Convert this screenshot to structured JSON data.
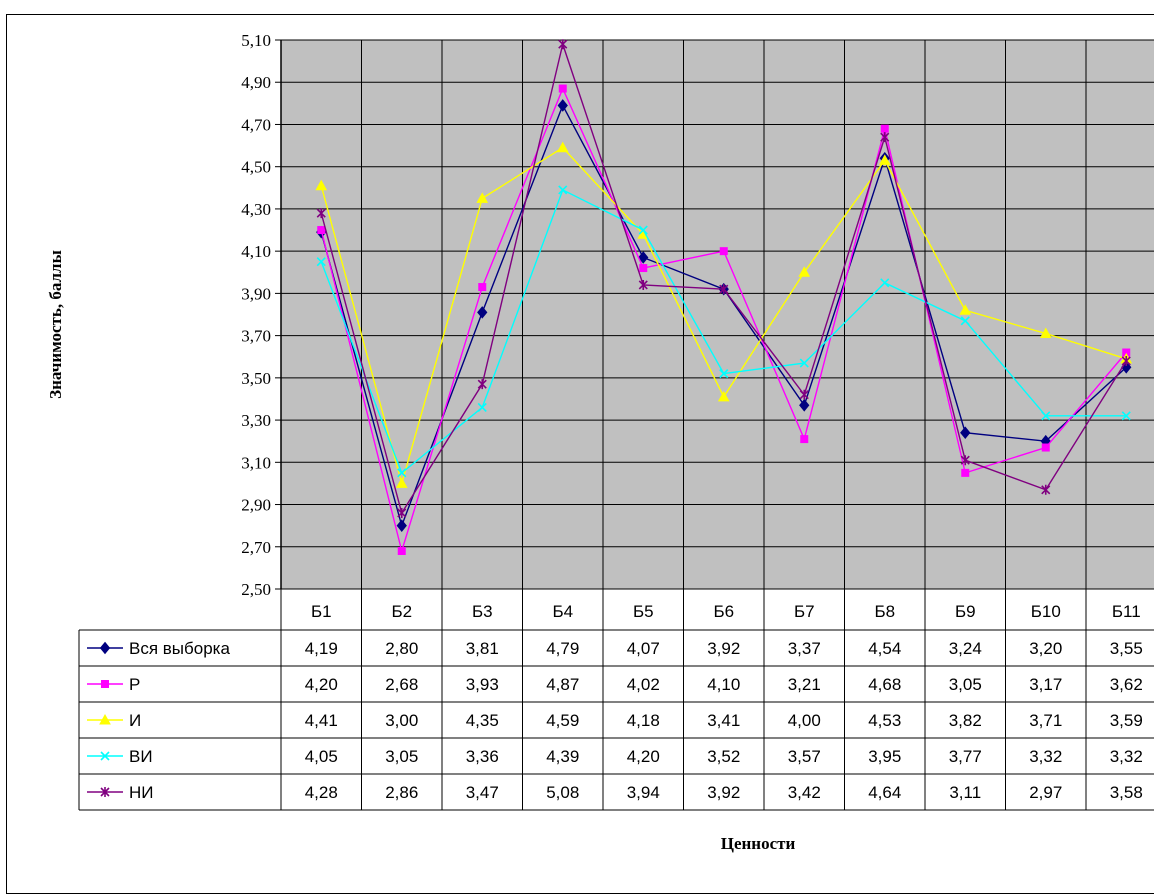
{
  "chart_data": {
    "type": "line",
    "title": "",
    "xlabel": "Ценности",
    "ylabel": "Значимость, баллы",
    "ylim": [
      2.5,
      5.1
    ],
    "yticks": [
      "2,50",
      "2,70",
      "2,90",
      "3,10",
      "3,30",
      "3,50",
      "3,70",
      "3,90",
      "4,10",
      "4,30",
      "4,50",
      "4,70",
      "4,90",
      "5,10"
    ],
    "categories": [
      "Б1",
      "Б2",
      "Б3",
      "Б4",
      "Б5",
      "Б6",
      "Б7",
      "Б8",
      "Б9",
      "Б10",
      "Б11"
    ],
    "grid": true,
    "legend": "data-table",
    "series": [
      {
        "name": "Вся выборка",
        "color": "#000080",
        "marker": "diamond",
        "values": [
          4.19,
          2.8,
          3.81,
          4.79,
          4.07,
          3.92,
          3.37,
          4.54,
          3.24,
          3.2,
          3.55
        ],
        "labels": [
          "4,19",
          "2,80",
          "3,81",
          "4,79",
          "4,07",
          "3,92",
          "3,37",
          "4,54",
          "3,24",
          "3,20",
          "3,55"
        ]
      },
      {
        "name": "Р",
        "color": "#FF00FF",
        "marker": "square",
        "values": [
          4.2,
          2.68,
          3.93,
          4.87,
          4.02,
          4.1,
          3.21,
          4.68,
          3.05,
          3.17,
          3.62
        ],
        "labels": [
          "4,20",
          "2,68",
          "3,93",
          "4,87",
          "4,02",
          "4,10",
          "3,21",
          "4,68",
          "3,05",
          "3,17",
          "3,62"
        ]
      },
      {
        "name": "И",
        "color": "#FFFF00",
        "marker": "triangle",
        "values": [
          4.41,
          3.0,
          4.35,
          4.59,
          4.18,
          3.41,
          4.0,
          4.53,
          3.82,
          3.71,
          3.59
        ],
        "labels": [
          "4,41",
          "3,00",
          "4,35",
          "4,59",
          "4,18",
          "3,41",
          "4,00",
          "4,53",
          "3,82",
          "3,71",
          "3,59"
        ]
      },
      {
        "name": "ВИ",
        "color": "#00FFFF",
        "marker": "x",
        "values": [
          4.05,
          3.05,
          3.36,
          4.39,
          4.2,
          3.52,
          3.57,
          3.95,
          3.77,
          3.32,
          3.32
        ],
        "labels": [
          "4,05",
          "3,05",
          "3,36",
          "4,39",
          "4,20",
          "3,52",
          "3,57",
          "3,95",
          "3,77",
          "3,32",
          "3,32"
        ]
      },
      {
        "name": "НИ",
        "color": "#800080",
        "marker": "star",
        "values": [
          4.28,
          2.86,
          3.47,
          5.08,
          3.94,
          3.92,
          3.42,
          4.64,
          3.11,
          2.97,
          3.58
        ],
        "labels": [
          "4,28",
          "2,86",
          "3,47",
          "5,08",
          "3,94",
          "3,92",
          "3,42",
          "4,64",
          "3,11",
          "2,97",
          "3,58"
        ]
      }
    ]
  },
  "colors": {
    "plot_background": "#C0C0C0",
    "grid": "#000000"
  }
}
